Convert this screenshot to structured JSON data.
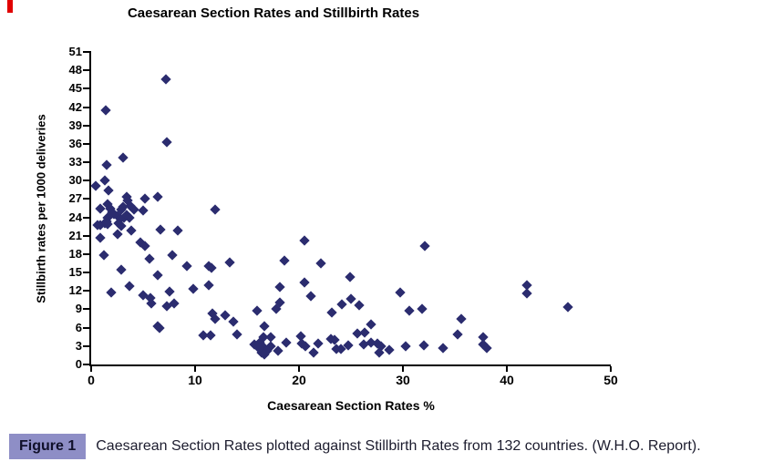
{
  "figure": {
    "red_mark_color": "#e10000",
    "caption": {
      "badge_label": "Figure 1",
      "badge_bg": "#8e8ec6",
      "badge_text_color": "#10102a",
      "text": "Caesarean Section Rates plotted against Stillbirth Rates from 132 countries.  (W.H.O. Report).",
      "text_color": "#1c1c2e"
    }
  },
  "chart_data": {
    "type": "scatter",
    "title": "Caesarean Section Rates and Stillbirth Rates",
    "xlabel": "Caesarean Section Rates %",
    "ylabel": "Stillbirth rates per 1000 deliveries",
    "xlim": [
      0,
      50
    ],
    "ylim": [
      0,
      51
    ],
    "x_ticks": [
      0,
      10,
      20,
      30,
      40,
      50
    ],
    "y_ticks": [
      0,
      3,
      6,
      9,
      12,
      15,
      18,
      21,
      24,
      27,
      30,
      33,
      36,
      39,
      42,
      45,
      48,
      51
    ],
    "grid": false,
    "legend": "none",
    "marker": "diamond",
    "marker_color": "#2b2c6f",
    "axis_color": "#000000",
    "points": [
      [
        7.2,
        46.6
      ],
      [
        1.4,
        41.5
      ],
      [
        7.3,
        36.3
      ],
      [
        3.1,
        33.8
      ],
      [
        1.5,
        32.5
      ],
      [
        1.3,
        30.0
      ],
      [
        0.4,
        29.1
      ],
      [
        1.7,
        28.4
      ],
      [
        3.4,
        27.3
      ],
      [
        3.5,
        26.8
      ],
      [
        5.2,
        27.0
      ],
      [
        6.4,
        27.4
      ],
      [
        0.9,
        25.5
      ],
      [
        1.6,
        26.1
      ],
      [
        1.8,
        25.4
      ],
      [
        2.0,
        24.8
      ],
      [
        2.9,
        25.3
      ],
      [
        3.1,
        25.7
      ],
      [
        3.8,
        25.8
      ],
      [
        4.1,
        25.3
      ],
      [
        5.0,
        25.2
      ],
      [
        11.9,
        25.3
      ],
      [
        1.6,
        24.0
      ],
      [
        1.5,
        23.4
      ],
      [
        2.5,
        24.2
      ],
      [
        2.8,
        23.8
      ],
      [
        3.2,
        24.0
      ],
      [
        3.4,
        24.4
      ],
      [
        3.7,
        23.9
      ],
      [
        2.2,
        24.5
      ],
      [
        0.6,
        22.8
      ],
      [
        0.9,
        22.7
      ],
      [
        1.3,
        23.0
      ],
      [
        1.6,
        22.9
      ],
      [
        2.6,
        23.0
      ],
      [
        2.9,
        22.6
      ],
      [
        6.7,
        22.0
      ],
      [
        8.3,
        21.9
      ],
      [
        0.9,
        20.6
      ],
      [
        2.5,
        21.3
      ],
      [
        3.9,
        21.8
      ],
      [
        4.7,
        19.9
      ],
      [
        5.2,
        19.4
      ],
      [
        20.5,
        20.2
      ],
      [
        32.1,
        19.3
      ],
      [
        1.2,
        17.8
      ],
      [
        7.8,
        17.9
      ],
      [
        5.6,
        17.2
      ],
      [
        22.1,
        16.5
      ],
      [
        18.6,
        16.9
      ],
      [
        13.3,
        16.7
      ],
      [
        11.3,
        16.0
      ],
      [
        11.6,
        15.7
      ],
      [
        9.2,
        16.0
      ],
      [
        2.9,
        15.4
      ],
      [
        6.4,
        14.5
      ],
      [
        24.9,
        14.2
      ],
      [
        20.5,
        13.4
      ],
      [
        41.9,
        13.0
      ],
      [
        11.3,
        12.9
      ],
      [
        18.2,
        12.6
      ],
      [
        3.7,
        12.8
      ],
      [
        9.8,
        12.4
      ],
      [
        7.5,
        11.9
      ],
      [
        1.9,
        11.8
      ],
      [
        41.9,
        11.6
      ],
      [
        29.7,
        11.7
      ],
      [
        21.1,
        11.2
      ],
      [
        5.0,
        11.3
      ],
      [
        5.7,
        10.8
      ],
      [
        25.0,
        10.7
      ],
      [
        18.2,
        10.1
      ],
      [
        8.0,
        10.0
      ],
      [
        5.8,
        9.9
      ],
      [
        24.1,
        9.8
      ],
      [
        25.8,
        9.7
      ],
      [
        7.3,
        9.5
      ],
      [
        45.9,
        9.3
      ],
      [
        31.8,
        9.0
      ],
      [
        17.8,
        9.0
      ],
      [
        16.0,
        8.8
      ],
      [
        30.6,
        8.7
      ],
      [
        23.2,
        8.5
      ],
      [
        11.7,
        8.3
      ],
      [
        12.9,
        8.1
      ],
      [
        35.6,
        7.5
      ],
      [
        11.9,
        7.4
      ],
      [
        13.7,
        7.0
      ],
      [
        26.9,
        6.5
      ],
      [
        16.7,
        6.3
      ],
      [
        6.4,
        6.2
      ],
      [
        6.6,
        5.9
      ],
      [
        26.3,
        5.2
      ],
      [
        25.6,
        5.1
      ],
      [
        14.0,
        4.9
      ],
      [
        35.3,
        4.9
      ],
      [
        10.8,
        4.8
      ],
      [
        11.5,
        4.7
      ],
      [
        20.2,
        4.6
      ],
      [
        16.6,
        4.5
      ],
      [
        17.3,
        4.4
      ],
      [
        37.7,
        4.5
      ],
      [
        23.1,
        4.2
      ],
      [
        23.4,
        4.0
      ],
      [
        18.8,
        3.5
      ],
      [
        16.2,
        3.5
      ],
      [
        21.8,
        3.4
      ],
      [
        27.5,
        3.4
      ],
      [
        20.3,
        3.4
      ],
      [
        15.7,
        3.3
      ],
      [
        26.9,
        3.6
      ],
      [
        24.7,
        3.1
      ],
      [
        26.2,
        3.2
      ],
      [
        32.0,
        3.1
      ],
      [
        37.7,
        3.2
      ],
      [
        16.5,
        2.9
      ],
      [
        17.3,
        2.9
      ],
      [
        27.9,
        2.9
      ],
      [
        30.3,
        2.9
      ],
      [
        20.6,
        2.9
      ],
      [
        33.9,
        2.7
      ],
      [
        38.1,
        2.7
      ],
      [
        23.6,
        2.6
      ],
      [
        24.0,
        2.5
      ],
      [
        28.7,
        2.4
      ],
      [
        16.9,
        2.3
      ],
      [
        18.0,
        2.3
      ],
      [
        16.4,
        2.0
      ],
      [
        27.7,
        2.0
      ],
      [
        21.4,
        1.9
      ],
      [
        16.7,
        1.7
      ],
      [
        16.1,
        2.7
      ]
    ]
  }
}
